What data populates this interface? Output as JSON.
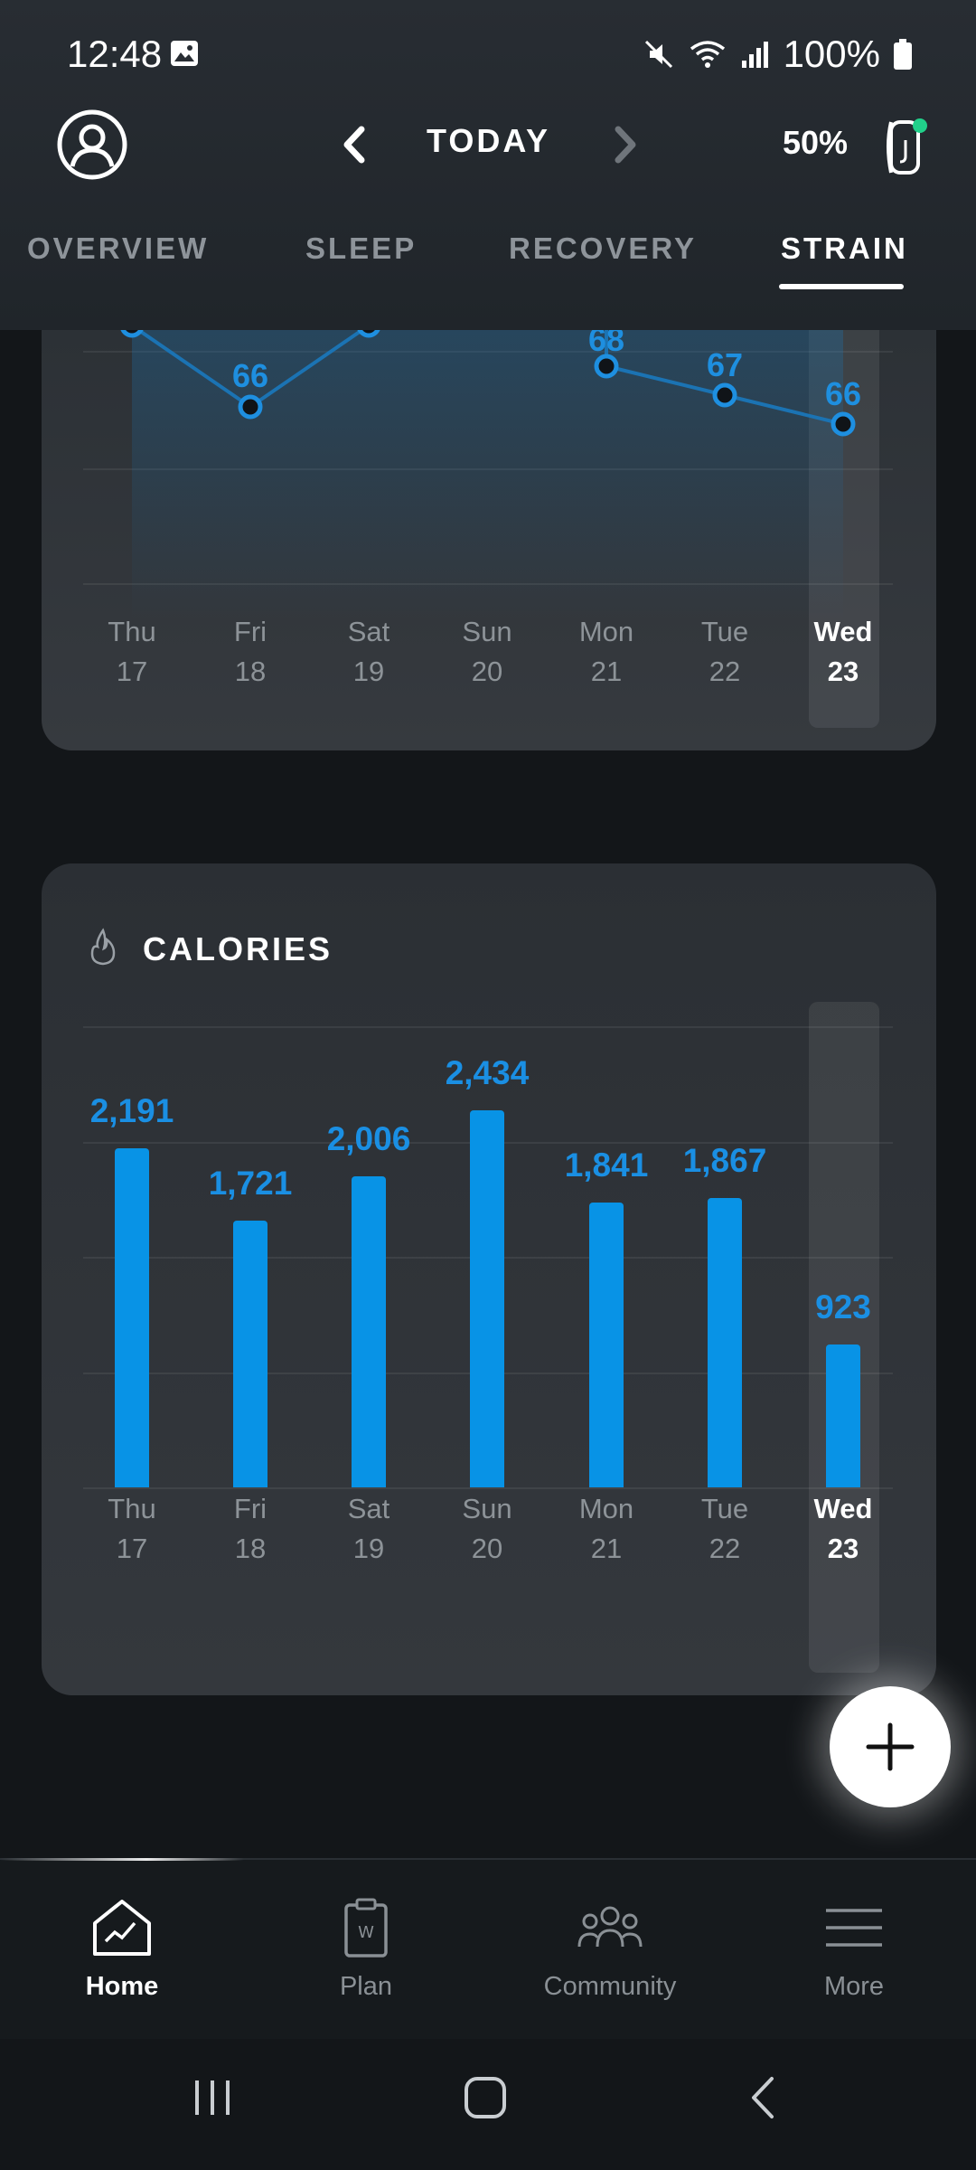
{
  "status_bar": {
    "time": "12:48",
    "battery": "100%",
    "icons": [
      "gallery-icon",
      "mute-icon",
      "wifi-icon",
      "signal-icon",
      "battery-icon"
    ]
  },
  "header": {
    "title": "TODAY",
    "strap_battery": "50%",
    "icons": [
      "profile-icon",
      "chevron-left-icon",
      "chevron-right-icon",
      "strap-icon"
    ]
  },
  "tabs": [
    {
      "label": "OVERVIEW",
      "active": false
    },
    {
      "label": "SLEEP",
      "active": false
    },
    {
      "label": "RECOVERY",
      "active": false
    },
    {
      "label": "STRAIN",
      "active": true
    }
  ],
  "days": [
    {
      "name": "Thu",
      "date": "17"
    },
    {
      "name": "Fri",
      "date": "18"
    },
    {
      "name": "Sat",
      "date": "19"
    },
    {
      "name": "Sun",
      "date": "20"
    },
    {
      "name": "Mon",
      "date": "21"
    },
    {
      "name": "Tue",
      "date": "22"
    },
    {
      "name": "Wed",
      "date": "23"
    }
  ],
  "chart_data": [
    {
      "type": "line",
      "title": "",
      "categories": [
        "Thu 17",
        "Fri 18",
        "Sat 19",
        "Sun 20",
        "Mon 21",
        "Tue 22",
        "Wed 23"
      ],
      "visible_values": [
        null,
        66,
        null,
        null,
        68,
        67,
        66
      ],
      "values_label": [
        "",
        "66",
        "",
        "",
        "68",
        "67",
        "66"
      ],
      "color": "#1e8fe0"
    },
    {
      "type": "bar",
      "title": "CALORIES",
      "categories": [
        "Thu 17",
        "Fri 18",
        "Sat 19",
        "Sun 20",
        "Mon 21",
        "Tue 22",
        "Wed 23"
      ],
      "values": [
        2191,
        1721,
        2006,
        2434,
        1841,
        1867,
        923
      ],
      "value_labels": [
        "2,191",
        "1,721",
        "2,006",
        "2,434",
        "1,841",
        "1,867",
        "923"
      ],
      "ylim": [
        0,
        3000
      ],
      "color": "#0893e6",
      "grid": true
    }
  ],
  "bottom_nav": [
    {
      "label": "Home",
      "icon": "home-chart-icon",
      "active": true
    },
    {
      "label": "Plan",
      "icon": "clipboard-icon",
      "active": false
    },
    {
      "label": "Community",
      "icon": "community-icon",
      "active": false
    },
    {
      "label": "More",
      "icon": "menu-icon",
      "active": false
    }
  ],
  "fab": {
    "icon": "plus-icon"
  },
  "system_nav": [
    "recents-icon",
    "home-icon",
    "back-icon"
  ]
}
